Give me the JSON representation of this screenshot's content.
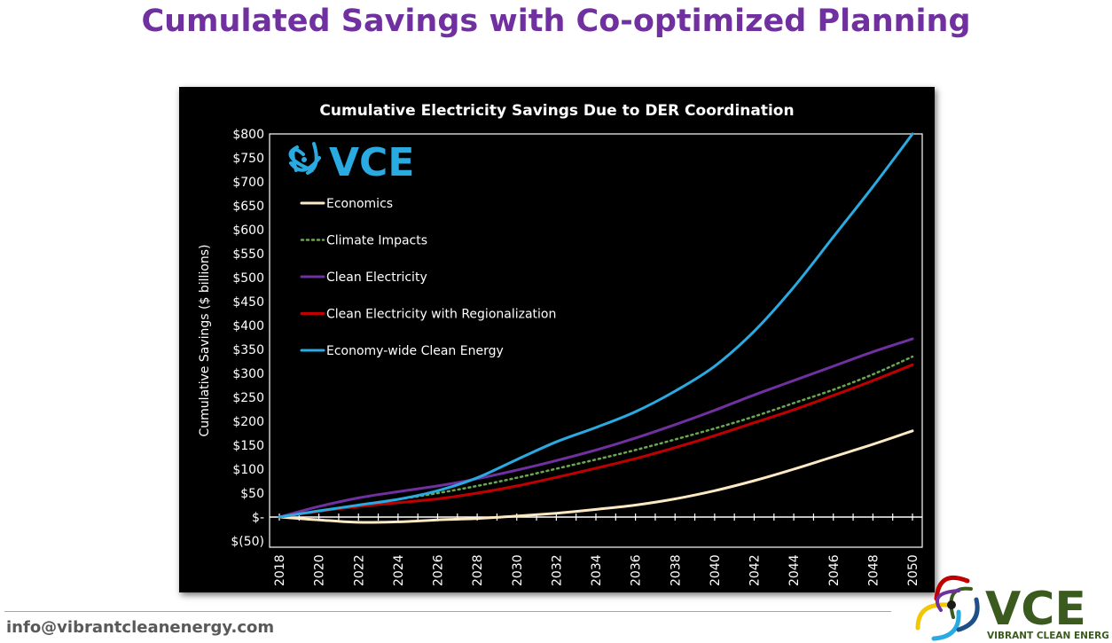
{
  "slide": {
    "title": "Cumulated Savings with Co-optimized Planning",
    "email": "info@vibrantcleanenergy.com"
  },
  "chart_logo": {
    "text": "VCE",
    "color": "#29abe2"
  },
  "brand_logo": {
    "text": "VCE",
    "tagline": "VIBRANT CLEAN ENERGY",
    "color": "#3a5a1e"
  },
  "chart_data": {
    "type": "line",
    "title": "Cumulative Electricity Savings Due to DER Coordination",
    "ylabel": "Cumulative Savings ($ billions)",
    "xlabel": "",
    "ylim": [
      -50,
      800
    ],
    "yticks": [
      -50,
      0,
      50,
      100,
      150,
      200,
      250,
      300,
      350,
      400,
      450,
      500,
      550,
      600,
      650,
      700,
      750,
      800
    ],
    "ytick_labels": [
      "$(50)",
      "$-",
      "$50",
      "$100",
      "$150",
      "$200",
      "$250",
      "$300",
      "$350",
      "$400",
      "$450",
      "$500",
      "$550",
      "$600",
      "$650",
      "$700",
      "$750",
      "$800"
    ],
    "x": [
      2018,
      2020,
      2022,
      2024,
      2026,
      2028,
      2030,
      2032,
      2034,
      2036,
      2038,
      2040,
      2042,
      2044,
      2046,
      2048,
      2050
    ],
    "xtick_labels": [
      "2018",
      "2020",
      "2022",
      "2024",
      "2026",
      "2028",
      "2030",
      "2032",
      "2034",
      "2036",
      "2038",
      "2040",
      "2042",
      "2044",
      "2046",
      "2048",
      "2050"
    ],
    "grid": false,
    "legend_position": "top-left",
    "series": [
      {
        "name": "Economics",
        "color": "#fde9c3",
        "style": "solid",
        "values": [
          0,
          -6,
          -11,
          -10,
          -6,
          -3,
          2,
          8,
          16,
          25,
          38,
          55,
          76,
          100,
          126,
          152,
          180
        ]
      },
      {
        "name": "Climate Impacts",
        "color": "#6aa84f",
        "style": "dotted",
        "values": [
          0,
          12,
          25,
          37,
          50,
          65,
          82,
          101,
          120,
          140,
          162,
          185,
          210,
          238,
          266,
          298,
          335
        ]
      },
      {
        "name": "Clean Electricity",
        "color": "#7030a0",
        "style": "solid",
        "values": [
          0,
          22,
          40,
          53,
          65,
          80,
          98,
          118,
          140,
          165,
          193,
          223,
          255,
          285,
          315,
          345,
          372
        ]
      },
      {
        "name": "Clean Electricity with Regionalization",
        "color": "#c00000",
        "style": "solid",
        "values": [
          0,
          12,
          22,
          30,
          38,
          50,
          65,
          83,
          102,
          122,
          145,
          170,
          197,
          224,
          254,
          285,
          318
        ]
      },
      {
        "name": "Economy-wide Clean Energy",
        "color": "#29abe2",
        "style": "solid",
        "values": [
          0,
          13,
          25,
          37,
          55,
          82,
          120,
          157,
          187,
          220,
          263,
          315,
          388,
          480,
          585,
          690,
          800
        ]
      }
    ]
  }
}
